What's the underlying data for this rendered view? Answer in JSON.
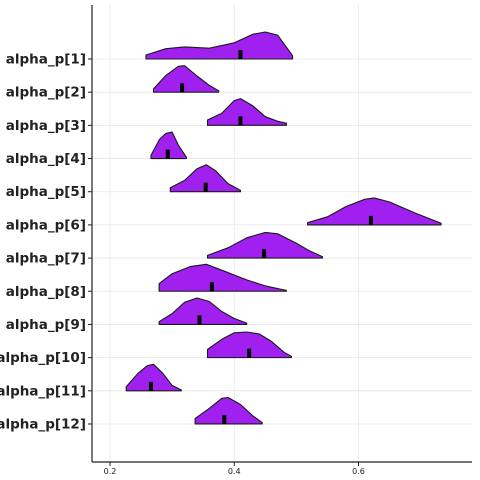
{
  "chart_data": {
    "type": "ridgeline",
    "categories": [
      "alpha_p[1]",
      "alpha_p[2]",
      "alpha_p[3]",
      "alpha_p[4]",
      "alpha_p[5]",
      "alpha_p[6]",
      "alpha_p[7]",
      "alpha_p[8]",
      "alpha_p[9]",
      "alpha_p[10]",
      "alpha_p[11]",
      "alpha_p[12]"
    ],
    "x_ticks": [
      0.2,
      0.4,
      0.6
    ],
    "x_tick_labels": [
      "0.2",
      "0.4",
      "0.6"
    ],
    "xlim": [
      0.17,
      0.77
    ],
    "grid": true,
    "fill_color": "#A020F0",
    "median_color": "#000000",
    "series": [
      {
        "name": "alpha_p[1]",
        "min": 0.258,
        "max": 0.494,
        "median": 0.41,
        "density": [
          [
            0.258,
            0.15
          ],
          [
            0.29,
            0.38
          ],
          [
            0.32,
            0.45
          ],
          [
            0.36,
            0.4
          ],
          [
            0.4,
            0.6
          ],
          [
            0.43,
            0.92
          ],
          [
            0.45,
            1.0
          ],
          [
            0.47,
            0.88
          ],
          [
            0.494,
            0.12
          ]
        ]
      },
      {
        "name": "alpha_p[2]",
        "min": 0.27,
        "max": 0.375,
        "median": 0.316,
        "density": [
          [
            0.27,
            0.12
          ],
          [
            0.29,
            0.62
          ],
          [
            0.31,
            0.96
          ],
          [
            0.32,
            0.98
          ],
          [
            0.34,
            0.6
          ],
          [
            0.36,
            0.25
          ],
          [
            0.375,
            0.05
          ]
        ]
      },
      {
        "name": "alpha_p[3]",
        "min": 0.357,
        "max": 0.484,
        "median": 0.41,
        "density": [
          [
            0.357,
            0.2
          ],
          [
            0.38,
            0.45
          ],
          [
            0.4,
            0.92
          ],
          [
            0.41,
            0.99
          ],
          [
            0.43,
            0.72
          ],
          [
            0.45,
            0.32
          ],
          [
            0.47,
            0.15
          ],
          [
            0.484,
            0.08
          ]
        ]
      },
      {
        "name": "alpha_p[4]",
        "min": 0.266,
        "max": 0.323,
        "median": 0.293,
        "density": [
          [
            0.266,
            0.12
          ],
          [
            0.28,
            0.72
          ],
          [
            0.29,
            0.93
          ],
          [
            0.3,
            0.98
          ],
          [
            0.31,
            0.5
          ],
          [
            0.323,
            0.05
          ]
        ]
      },
      {
        "name": "alpha_p[5]",
        "min": 0.297,
        "max": 0.41,
        "median": 0.354,
        "density": [
          [
            0.297,
            0.15
          ],
          [
            0.32,
            0.42
          ],
          [
            0.34,
            0.85
          ],
          [
            0.355,
            1.0
          ],
          [
            0.37,
            0.78
          ],
          [
            0.39,
            0.3
          ],
          [
            0.41,
            0.05
          ]
        ]
      },
      {
        "name": "alpha_p[6]",
        "min": 0.518,
        "max": 0.733,
        "median": 0.62,
        "density": [
          [
            0.518,
            0.08
          ],
          [
            0.55,
            0.3
          ],
          [
            0.58,
            0.68
          ],
          [
            0.61,
            0.95
          ],
          [
            0.625,
            1.0
          ],
          [
            0.65,
            0.85
          ],
          [
            0.69,
            0.45
          ],
          [
            0.733,
            0.06
          ]
        ]
      },
      {
        "name": "alpha_p[7]",
        "min": 0.357,
        "max": 0.542,
        "median": 0.448,
        "density": [
          [
            0.357,
            0.1
          ],
          [
            0.39,
            0.38
          ],
          [
            0.42,
            0.75
          ],
          [
            0.45,
            0.95
          ],
          [
            0.47,
            0.9
          ],
          [
            0.5,
            0.55
          ],
          [
            0.52,
            0.28
          ],
          [
            0.542,
            0.05
          ]
        ]
      },
      {
        "name": "alpha_p[8]",
        "min": 0.279,
        "max": 0.484,
        "median": 0.364,
        "density": [
          [
            0.279,
            0.28
          ],
          [
            0.3,
            0.65
          ],
          [
            0.33,
            0.92
          ],
          [
            0.355,
            1.0
          ],
          [
            0.38,
            0.78
          ],
          [
            0.42,
            0.42
          ],
          [
            0.45,
            0.2
          ],
          [
            0.484,
            0.03
          ]
        ]
      },
      {
        "name": "alpha_p[9]",
        "min": 0.279,
        "max": 0.42,
        "median": 0.344,
        "density": [
          [
            0.279,
            0.1
          ],
          [
            0.3,
            0.4
          ],
          [
            0.32,
            0.82
          ],
          [
            0.34,
            0.98
          ],
          [
            0.36,
            0.85
          ],
          [
            0.38,
            0.48
          ],
          [
            0.4,
            0.22
          ],
          [
            0.42,
            0.05
          ]
        ]
      },
      {
        "name": "alpha_p[10]",
        "min": 0.357,
        "max": 0.492,
        "median": 0.424,
        "density": [
          [
            0.357,
            0.3
          ],
          [
            0.38,
            0.68
          ],
          [
            0.4,
            0.92
          ],
          [
            0.42,
            0.95
          ],
          [
            0.44,
            0.88
          ],
          [
            0.46,
            0.6
          ],
          [
            0.48,
            0.2
          ],
          [
            0.492,
            0.05
          ]
        ]
      },
      {
        "name": "alpha_p[11]",
        "min": 0.226,
        "max": 0.315,
        "median": 0.266,
        "density": [
          [
            0.226,
            0.15
          ],
          [
            0.245,
            0.65
          ],
          [
            0.26,
            0.93
          ],
          [
            0.27,
            0.98
          ],
          [
            0.285,
            0.65
          ],
          [
            0.3,
            0.2
          ],
          [
            0.315,
            0.03
          ]
        ]
      },
      {
        "name": "alpha_p[12]",
        "min": 0.337,
        "max": 0.445,
        "median": 0.384,
        "density": [
          [
            0.337,
            0.2
          ],
          [
            0.36,
            0.58
          ],
          [
            0.38,
            0.95
          ],
          [
            0.39,
            0.98
          ],
          [
            0.41,
            0.72
          ],
          [
            0.43,
            0.3
          ],
          [
            0.445,
            0.05
          ]
        ]
      }
    ]
  }
}
